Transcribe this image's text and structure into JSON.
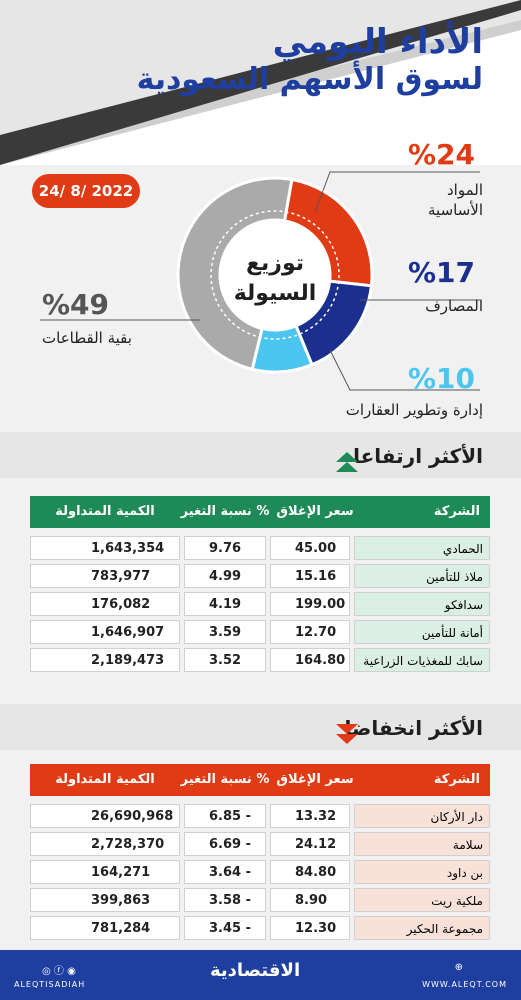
{
  "header": {
    "title_line1": "الأداء اليومي",
    "title_line2": "لسوق الأسهم السعودية",
    "date": "24/ 8/ 2022"
  },
  "liquidity": {
    "center_line1": "توزيع",
    "center_line2": "السيولة",
    "segments": [
      {
        "pct_label": "%24",
        "label_line1": "المواد",
        "label_line2": "الأساسية",
        "value": 24,
        "color": "#e03b14"
      },
      {
        "pct_label": "%17",
        "label_line1": "المصارف",
        "label_line2": "",
        "value": 17,
        "color": "#1b2f8f"
      },
      {
        "pct_label": "%10",
        "label_line1": "إدارة وتطوير العقارات",
        "label_line2": "",
        "value": 10,
        "color": "#4cc6f0"
      },
      {
        "pct_label": "%49",
        "label_line1": "بقية القطاعات",
        "label_line2": "",
        "value": 49,
        "color": "#aaaaaa"
      }
    ]
  },
  "gainers": {
    "title": "الأكثر ارتفاعا",
    "color": "#1e8a57",
    "headers": {
      "company": "الشركة",
      "close": "سعر الإغلاق",
      "change": "نسبة التغير %",
      "volume": "الكمية المتداولة"
    },
    "rows": [
      {
        "company": "الحمادي",
        "close": "45.00",
        "change": "9.76",
        "volume": "1,643,354"
      },
      {
        "company": "ملاذ للتأمين",
        "close": "15.16",
        "change": "4.99",
        "volume": "783,977"
      },
      {
        "company": "سدافكو",
        "close": "199.00",
        "change": "4.19",
        "volume": "176,082"
      },
      {
        "company": "أمانة للتأمين",
        "close": "12.70",
        "change": "3.59",
        "volume": "1,646,907"
      },
      {
        "company": "سابك للمغذيات الزراعية",
        "close": "164.80",
        "change": "3.52",
        "volume": "2,189,473"
      }
    ]
  },
  "losers": {
    "title": "الأكثر انخفاضا",
    "color": "#e03b14",
    "headers": {
      "company": "الشركة",
      "close": "سعر الإغلاق",
      "change": "نسبة التغير %",
      "volume": "الكمية المتداولة"
    },
    "rows": [
      {
        "company": "دار الأركان",
        "close": "13.32",
        "change": "6.85 -",
        "volume": "26,690,968"
      },
      {
        "company": "سلامة",
        "close": "24.12",
        "change": "6.69 -",
        "volume": "2,728,370"
      },
      {
        "company": "بن داود",
        "close": "84.80",
        "change": "3.64 -",
        "volume": "164,271"
      },
      {
        "company": "ملكية ريت",
        "close": "8.90",
        "change": "3.58 -",
        "volume": "399,863"
      },
      {
        "company": "مجموعة الحكير",
        "close": "12.30",
        "change": "3.45 -",
        "volume": "781,284"
      }
    ]
  },
  "footer": {
    "logo": "الاقتصادية",
    "handle": "ALEQTISADIAH",
    "site": "WWW.ALEQT.COM"
  }
}
